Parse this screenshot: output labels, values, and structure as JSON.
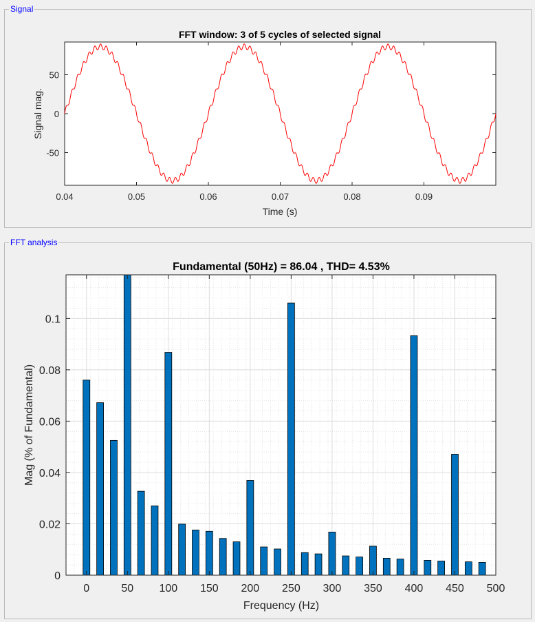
{
  "panels": {
    "signal_title": "Signal",
    "fft_title": "FFT analysis"
  },
  "chart_data": [
    {
      "type": "line",
      "title": "FFT window: 3 of 5 cycles of selected signal",
      "xlabel": "Time (s)",
      "ylabel": "Signal mag.",
      "xlim": [
        0.04,
        0.1
      ],
      "ylim": [
        -92,
        92
      ],
      "x_ticks": [
        "0.04",
        "0.05",
        "0.06",
        "0.07",
        "0.08",
        "0.09"
      ],
      "y_ticks": [
        "50",
        "0",
        "-50"
      ],
      "x_tick_values": [
        0.04,
        0.05,
        0.06,
        0.07,
        0.08,
        0.09
      ],
      "y_tick_values": [
        50,
        0,
        -50
      ],
      "series": [
        {
          "amplitude": 86.04,
          "frequency_hz": 50,
          "ripple_amplitude": 3.5,
          "ripple_frequency_hz": 1250,
          "color": "#ff0000"
        }
      ],
      "grid": false
    },
    {
      "type": "bar",
      "title": "Fundamental (50Hz) = 86.04 , THD= 4.53%",
      "xlabel": "Frequency (Hz)",
      "ylabel": "Mag (% of Fundamental)",
      "xlim": [
        -25,
        500
      ],
      "ylim": [
        0,
        0.117
      ],
      "x_ticks": [
        "0",
        "50",
        "100",
        "150",
        "200",
        "250",
        "300",
        "350",
        "400",
        "450",
        "500"
      ],
      "y_ticks": [
        "0",
        "0.02",
        "0.04",
        "0.06",
        "0.08",
        "0.1"
      ],
      "x_tick_values": [
        0,
        50,
        100,
        150,
        200,
        250,
        300,
        350,
        400,
        450,
        500
      ],
      "y_tick_values": [
        0,
        0.02,
        0.04,
        0.06,
        0.08,
        0.1
      ],
      "x": [
        0,
        16.67,
        33.33,
        50,
        66.67,
        83.33,
        100,
        116.67,
        133.33,
        150,
        166.67,
        183.33,
        200,
        216.67,
        233.33,
        250,
        266.67,
        283.33,
        300,
        316.67,
        333.33,
        350,
        366.67,
        383.33,
        400,
        416.67,
        433.33,
        450,
        466.67,
        483.33
      ],
      "values": [
        0.076,
        0.0672,
        0.0525,
        0.117,
        0.0327,
        0.027,
        0.0868,
        0.0199,
        0.0176,
        0.0171,
        0.0143,
        0.013,
        0.0369,
        0.011,
        0.0102,
        0.106,
        0.0088,
        0.0083,
        0.0168,
        0.0075,
        0.0071,
        0.0113,
        0.0066,
        0.0063,
        0.0933,
        0.0058,
        0.0055,
        0.0471,
        0.0052,
        0.005
      ],
      "bar_color": "#0072bd",
      "grid": true
    }
  ]
}
